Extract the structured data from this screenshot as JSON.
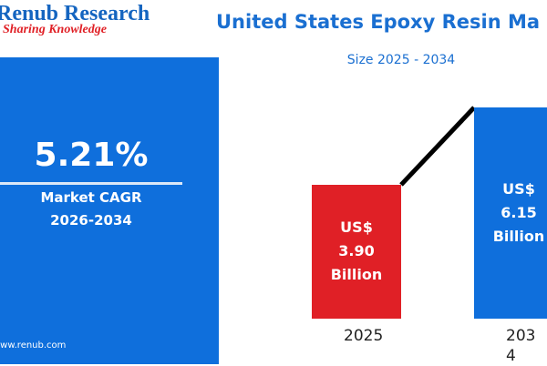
{
  "chart_data": {
    "type": "bar",
    "brand": "Renub Research",
    "tagline": "Sharing Knowledge",
    "title": "United States Epoxy Resin Ma",
    "subtitle": "Size 2025 - 2034",
    "cagr": "5.21%",
    "cagr_label": [
      "Market CAGR",
      "2026-2034"
    ],
    "website": "www.renub.com",
    "categories": [
      "2025",
      "2034"
    ],
    "values": [
      3.9,
      6.15
    ],
    "value_labels": [
      [
        "US$",
        "3.90",
        "Billion"
      ],
      [
        "US$",
        "6.15",
        "Billion"
      ]
    ],
    "colors": [
      "#e02026",
      "#0f6fdc"
    ],
    "connector_color": "#000000"
  }
}
